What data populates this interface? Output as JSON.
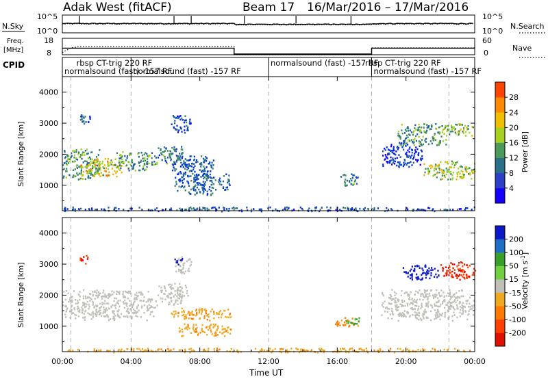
{
  "header": {
    "station": "Adak West (fitACF)",
    "beam": "Beam 17",
    "date_range": "16/Mar/2016 – 17/Mar/2016"
  },
  "labels": {
    "nsky": "N.Sky",
    "nsearch": "N.Search",
    "freq_top": "Freq.",
    "freq_unit": "[MHz]",
    "nave": "Nave",
    "cpid": "CPID",
    "noise_left_ticks": [
      "10^5",
      "10^0"
    ],
    "noise_right_ticks": [
      "10^5",
      "10^0"
    ],
    "freq_left_ticks": [
      "18",
      "8"
    ],
    "freq_right_ticks": [
      "60",
      "0"
    ]
  },
  "cpid_segments": [
    {
      "text": "rbsp CT-trig 220 RF",
      "start": 0.7,
      "end": 4.0,
      "row": 1
    },
    {
      "text": "normalsound (fast) -157 RF",
      "start": 0.0,
      "end": 8.0,
      "row": 2
    },
    {
      "text": "normalsound (fast) -157 RF",
      "start": 4.0,
      "end": 12.0,
      "row": 2
    },
    {
      "text": "normalsound (fast) -157 RF",
      "start": 12.0,
      "end": 18.0,
      "row": 1
    },
    {
      "text": "rbsp CT-trig 220 RF",
      "start": 17.5,
      "end": 22.5,
      "row": 1
    },
    {
      "text": "normalsound (fast) -157 RF",
      "start": 18.0,
      "end": 24.0,
      "row": 2
    }
  ],
  "chart_data": [
    {
      "type": "line",
      "name": "noise",
      "series": [
        {
          "name": "N.Sky",
          "style": "solid"
        },
        {
          "name": "N.Search",
          "style": "dotted"
        }
      ],
      "y_scale": "log",
      "ylim": [
        1,
        100000
      ],
      "spikes_hours": [
        1.0,
        6.5,
        7.5,
        10.6,
        13.6,
        16.8
      ]
    },
    {
      "type": "line",
      "name": "frequency",
      "series": [
        {
          "name": "Freq.",
          "style": "solid",
          "x": [
            0,
            10.0,
            10.0,
            18.0,
            18.0,
            24
          ],
          "y": [
            12.0,
            12.0,
            8.4,
            8.4,
            12.0,
            12.0
          ]
        },
        {
          "name": "Nave",
          "style": "dotted",
          "x": [
            0,
            0.5,
            1.0,
            10.0,
            10.0,
            18.0,
            18.0,
            24
          ],
          "y": [
            8,
            25,
            30,
            30,
            0,
            0,
            25,
            25
          ]
        }
      ],
      "ylim_left": [
        8,
        18
      ],
      "ylim_right": [
        0,
        60
      ]
    },
    {
      "type": "heatmap",
      "name": "power",
      "title": "",
      "xlabel": "",
      "ylabel": "Slant Range [km]",
      "xlim": [
        0,
        24
      ],
      "ylim": [
        180,
        4500
      ],
      "y_ticks": [
        1000,
        2000,
        3000,
        4000
      ],
      "colorbar": {
        "label": "Power [dB]",
        "ticks": [
          4,
          8,
          12,
          16,
          20,
          24,
          28
        ],
        "range": [
          0,
          32
        ]
      },
      "regions": [
        {
          "t0": 0.0,
          "t1": 2.2,
          "r0": 1200,
          "r1": 2200,
          "v": 14
        },
        {
          "t0": 1.0,
          "t1": 3.5,
          "r0": 1300,
          "r1": 1900,
          "v": 20
        },
        {
          "t0": 3.0,
          "t1": 5.5,
          "r0": 1500,
          "r1": 2100,
          "v": 14
        },
        {
          "t0": 5.5,
          "t1": 7.0,
          "r0": 1700,
          "r1": 2300,
          "v": 12
        },
        {
          "t0": 6.3,
          "t1": 8.8,
          "r0": 1200,
          "r1": 2000,
          "v": 9
        },
        {
          "t0": 6.5,
          "t1": 9.8,
          "r0": 700,
          "r1": 1400,
          "v": 10
        },
        {
          "t0": 6.3,
          "t1": 7.5,
          "r0": 2700,
          "r1": 3300,
          "v": 8
        },
        {
          "t0": 1.0,
          "t1": 1.6,
          "r0": 3000,
          "r1": 3400,
          "v": 10
        },
        {
          "t0": 16.0,
          "t1": 17.3,
          "r0": 1000,
          "r1": 1400,
          "v": 12
        },
        {
          "t0": 18.5,
          "t1": 21.0,
          "r0": 1600,
          "r1": 2400,
          "v": 6
        },
        {
          "t0": 19.5,
          "t1": 22.5,
          "r0": 2300,
          "r1": 3000,
          "v": 14
        },
        {
          "t0": 21.0,
          "t1": 24.0,
          "r0": 1200,
          "r1": 1800,
          "v": 18
        },
        {
          "t0": 22.0,
          "t1": 24.0,
          "r0": 2600,
          "r1": 3000,
          "v": 17
        },
        {
          "t0": 0.0,
          "t1": 24.0,
          "r0": 180,
          "r1": 320,
          "v": 8
        }
      ]
    },
    {
      "type": "heatmap",
      "name": "velocity",
      "title": "",
      "xlabel": "Time UT",
      "ylabel": "Slant Range [km]",
      "xlim": [
        0,
        24
      ],
      "ylim": [
        180,
        4500
      ],
      "x_tick_labels": [
        "00:00",
        "04:00",
        "08:00",
        "12:00",
        "16:00",
        "20:00",
        "00:00"
      ],
      "y_ticks": [
        1000,
        2000,
        3000,
        4000
      ],
      "colorbar": {
        "label": "Velocity [m s^-1]",
        "ticks": [
          200,
          100,
          50,
          15,
          -15,
          -50,
          -100,
          -200
        ]
      },
      "regions": [
        {
          "t0": 0.0,
          "t1": 5.5,
          "r0": 1200,
          "r1": 2200,
          "v": 0
        },
        {
          "t0": 5.5,
          "t1": 7.3,
          "r0": 1700,
          "r1": 2400,
          "v": 0
        },
        {
          "t0": 6.3,
          "t1": 9.8,
          "r0": 1200,
          "r1": 1600,
          "v": -40
        },
        {
          "t0": 6.5,
          "t1": 9.8,
          "r0": 700,
          "r1": 1100,
          "v": -40
        },
        {
          "t0": 6.5,
          "t1": 7.5,
          "r0": 2700,
          "r1": 3300,
          "v": 0
        },
        {
          "t0": 6.5,
          "t1": 7.0,
          "r0": 3000,
          "r1": 3250,
          "v": 200
        },
        {
          "t0": 1.0,
          "t1": 1.5,
          "r0": 3000,
          "r1": 3350,
          "v": -200
        },
        {
          "t0": 15.8,
          "t1": 17.3,
          "r0": 1000,
          "r1": 1300,
          "v": -60
        },
        {
          "t0": 16.5,
          "t1": 17.3,
          "r0": 1050,
          "r1": 1300,
          "v": 40
        },
        {
          "t0": 18.5,
          "t1": 24.0,
          "r0": 1200,
          "r1": 2200,
          "v": 0
        },
        {
          "t0": 19.8,
          "t1": 22.0,
          "r0": 2500,
          "r1": 3000,
          "v": 200
        },
        {
          "t0": 22.0,
          "t1": 24.0,
          "r0": 2500,
          "r1": 3100,
          "v": -200
        },
        {
          "t0": 0.0,
          "t1": 24.0,
          "r0": 180,
          "r1": 320,
          "v": -40
        }
      ]
    }
  ]
}
